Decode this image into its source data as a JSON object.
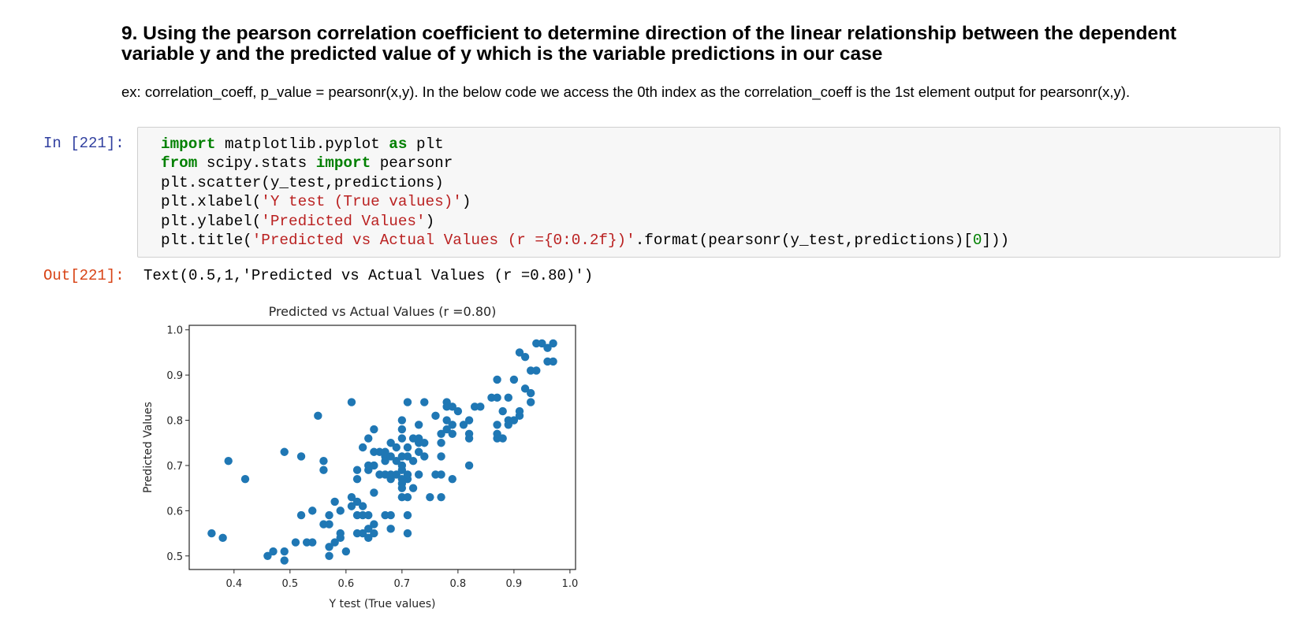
{
  "markdown": {
    "heading_line1": "9. Using the pearson correlation coefficient to determine direction of the linear relationship between the dependent",
    "heading_line2": "variable y and the predicted value of y which is the variable predictions in our case",
    "paragraph": "ex: correlation_coeff, p_value = pearsonr(x,y). In the below code we access the 0th index as the correlation_coeff is the 1st element output for pearsonr(x,y)."
  },
  "cell": {
    "in_prompt": "In [221]:",
    "out_prompt": "Out[221]:",
    "code": {
      "l1_kw1": "import",
      "l1_t1": " matplotlib.pyplot ",
      "l1_kw2": "as",
      "l1_t2": " plt",
      "l2_kw1": "from",
      "l2_t1": " scipy.stats ",
      "l2_kw2": "import",
      "l2_t2": " pearsonr",
      "l3_t1": "plt.scatter(y_test,predictions)",
      "l4_t1": "plt.xlabel(",
      "l4_s1": "'Y test (True values)'",
      "l4_t2": ")",
      "l5_t1": "plt.ylabel(",
      "l5_s1": "'Predicted Values'",
      "l5_t2": ")",
      "l6_t1": "plt.title(",
      "l6_s1": "'Predicted vs Actual Values (r ={0:0.2f})'",
      "l6_t2": ".format(pearsonr(y_test,predictions)[",
      "l6_n1": "0",
      "l6_t3": "]))"
    },
    "output_text": "Text(0.5,1,'Predicted vs Actual Values (r =0.80)')"
  },
  "chart_data": {
    "type": "scatter",
    "title": "Predicted vs Actual Values (r =0.80)",
    "xlabel": "Y test (True values)",
    "ylabel": "Predicted Values",
    "xlim": [
      0.32,
      1.01
    ],
    "ylim": [
      0.47,
      1.01
    ],
    "xticks": [
      "0.4",
      "0.5",
      "0.6",
      "0.7",
      "0.8",
      "0.9",
      "1.0"
    ],
    "yticks": [
      "0.5",
      "0.6",
      "0.7",
      "0.8",
      "0.9",
      "1.0"
    ],
    "grid": false,
    "point_color": "#1f77b4",
    "points": [
      [
        0.36,
        0.55
      ],
      [
        0.38,
        0.54
      ],
      [
        0.39,
        0.71
      ],
      [
        0.42,
        0.67
      ],
      [
        0.46,
        0.5
      ],
      [
        0.47,
        0.51
      ],
      [
        0.49,
        0.49
      ],
      [
        0.49,
        0.51
      ],
      [
        0.49,
        0.73
      ],
      [
        0.51,
        0.53
      ],
      [
        0.52,
        0.59
      ],
      [
        0.52,
        0.72
      ],
      [
        0.53,
        0.53
      ],
      [
        0.54,
        0.53
      ],
      [
        0.54,
        0.6
      ],
      [
        0.55,
        0.81
      ],
      [
        0.56,
        0.57
      ],
      [
        0.56,
        0.69
      ],
      [
        0.56,
        0.71
      ],
      [
        0.57,
        0.5
      ],
      [
        0.57,
        0.52
      ],
      [
        0.57,
        0.57
      ],
      [
        0.57,
        0.59
      ],
      [
        0.58,
        0.53
      ],
      [
        0.58,
        0.62
      ],
      [
        0.59,
        0.54
      ],
      [
        0.59,
        0.55
      ],
      [
        0.59,
        0.6
      ],
      [
        0.6,
        0.51
      ],
      [
        0.61,
        0.61
      ],
      [
        0.61,
        0.63
      ],
      [
        0.61,
        0.84
      ],
      [
        0.62,
        0.55
      ],
      [
        0.62,
        0.59
      ],
      [
        0.62,
        0.62
      ],
      [
        0.62,
        0.67
      ],
      [
        0.62,
        0.69
      ],
      [
        0.63,
        0.55
      ],
      [
        0.63,
        0.59
      ],
      [
        0.63,
        0.61
      ],
      [
        0.63,
        0.74
      ],
      [
        0.64,
        0.54
      ],
      [
        0.64,
        0.56
      ],
      [
        0.64,
        0.59
      ],
      [
        0.64,
        0.69
      ],
      [
        0.64,
        0.7
      ],
      [
        0.64,
        0.76
      ],
      [
        0.65,
        0.55
      ],
      [
        0.65,
        0.57
      ],
      [
        0.65,
        0.64
      ],
      [
        0.65,
        0.7
      ],
      [
        0.65,
        0.73
      ],
      [
        0.65,
        0.78
      ],
      [
        0.66,
        0.68
      ],
      [
        0.66,
        0.73
      ],
      [
        0.67,
        0.59
      ],
      [
        0.67,
        0.68
      ],
      [
        0.67,
        0.71
      ],
      [
        0.67,
        0.72
      ],
      [
        0.67,
        0.73
      ],
      [
        0.68,
        0.56
      ],
      [
        0.68,
        0.59
      ],
      [
        0.68,
        0.67
      ],
      [
        0.68,
        0.68
      ],
      [
        0.68,
        0.72
      ],
      [
        0.68,
        0.75
      ],
      [
        0.69,
        0.68
      ],
      [
        0.69,
        0.71
      ],
      [
        0.69,
        0.74
      ],
      [
        0.7,
        0.63
      ],
      [
        0.7,
        0.65
      ],
      [
        0.7,
        0.66
      ],
      [
        0.7,
        0.67
      ],
      [
        0.7,
        0.69
      ],
      [
        0.7,
        0.7
      ],
      [
        0.7,
        0.72
      ],
      [
        0.7,
        0.76
      ],
      [
        0.7,
        0.78
      ],
      [
        0.7,
        0.8
      ],
      [
        0.71,
        0.55
      ],
      [
        0.71,
        0.59
      ],
      [
        0.71,
        0.63
      ],
      [
        0.71,
        0.67
      ],
      [
        0.71,
        0.68
      ],
      [
        0.71,
        0.72
      ],
      [
        0.71,
        0.74
      ],
      [
        0.71,
        0.84
      ],
      [
        0.72,
        0.65
      ],
      [
        0.72,
        0.71
      ],
      [
        0.72,
        0.76
      ],
      [
        0.73,
        0.68
      ],
      [
        0.73,
        0.73
      ],
      [
        0.73,
        0.75
      ],
      [
        0.73,
        0.76
      ],
      [
        0.73,
        0.79
      ],
      [
        0.74,
        0.72
      ],
      [
        0.74,
        0.75
      ],
      [
        0.74,
        0.84
      ],
      [
        0.75,
        0.63
      ],
      [
        0.76,
        0.68
      ],
      [
        0.76,
        0.81
      ],
      [
        0.77,
        0.63
      ],
      [
        0.77,
        0.68
      ],
      [
        0.77,
        0.72
      ],
      [
        0.77,
        0.75
      ],
      [
        0.77,
        0.77
      ],
      [
        0.78,
        0.78
      ],
      [
        0.78,
        0.8
      ],
      [
        0.78,
        0.83
      ],
      [
        0.78,
        0.84
      ],
      [
        0.79,
        0.67
      ],
      [
        0.79,
        0.77
      ],
      [
        0.79,
        0.79
      ],
      [
        0.79,
        0.83
      ],
      [
        0.8,
        0.82
      ],
      [
        0.81,
        0.79
      ],
      [
        0.82,
        0.7
      ],
      [
        0.82,
        0.76
      ],
      [
        0.82,
        0.77
      ],
      [
        0.82,
        0.8
      ],
      [
        0.83,
        0.83
      ],
      [
        0.84,
        0.83
      ],
      [
        0.86,
        0.85
      ],
      [
        0.87,
        0.76
      ],
      [
        0.87,
        0.77
      ],
      [
        0.87,
        0.79
      ],
      [
        0.87,
        0.85
      ],
      [
        0.87,
        0.89
      ],
      [
        0.88,
        0.76
      ],
      [
        0.88,
        0.82
      ],
      [
        0.89,
        0.79
      ],
      [
        0.89,
        0.8
      ],
      [
        0.89,
        0.85
      ],
      [
        0.9,
        0.8
      ],
      [
        0.9,
        0.89
      ],
      [
        0.91,
        0.81
      ],
      [
        0.91,
        0.82
      ],
      [
        0.91,
        0.95
      ],
      [
        0.92,
        0.87
      ],
      [
        0.92,
        0.94
      ],
      [
        0.93,
        0.84
      ],
      [
        0.93,
        0.86
      ],
      [
        0.93,
        0.91
      ],
      [
        0.94,
        0.91
      ],
      [
        0.94,
        0.97
      ],
      [
        0.95,
        0.97
      ],
      [
        0.96,
        0.93
      ],
      [
        0.96,
        0.96
      ],
      [
        0.97,
        0.93
      ],
      [
        0.97,
        0.97
      ]
    ]
  }
}
